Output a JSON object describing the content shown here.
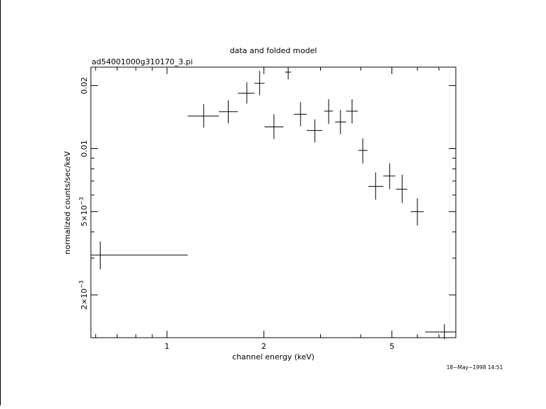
{
  "chart_data": {
    "type": "scatter",
    "title": "data and folded model",
    "subtitle": "ad54001000g310170_3.pi",
    "xlabel": "channel energy (keV)",
    "ylabel": "normalized counts/sec/keV",
    "xscale": "log",
    "yscale": "log",
    "xlim": [
      0.58,
      7.9
    ],
    "ylim": [
      0.00125,
      0.0245
    ],
    "x_ticklabels": [
      {
        "value": 1,
        "label": "1"
      },
      {
        "value": 2,
        "label": "2"
      },
      {
        "value": 5,
        "label": "5"
      }
    ],
    "y_ticklabels": [
      {
        "value": 0.002,
        "label": "2×10",
        "exp": "−3"
      },
      {
        "value": 0.005,
        "label": "5×10",
        "exp": "−3"
      },
      {
        "value": 0.01,
        "label": "0.01",
        "exp": ""
      },
      {
        "value": 0.02,
        "label": "0.02",
        "exp": ""
      }
    ],
    "points": [
      {
        "x": 0.62,
        "xlo": 0.58,
        "xhi": 1.16,
        "y": 0.0031,
        "ylo": 0.00265,
        "yhi": 0.0036
      },
      {
        "x": 1.3,
        "xlo": 1.16,
        "xhi": 1.45,
        "y": 0.0143,
        "ylo": 0.0126,
        "yhi": 0.0163
      },
      {
        "x": 1.55,
        "xlo": 1.45,
        "xhi": 1.66,
        "y": 0.015,
        "ylo": 0.0132,
        "yhi": 0.017
      },
      {
        "x": 1.77,
        "xlo": 1.66,
        "xhi": 1.87,
        "y": 0.0184,
        "ylo": 0.0164,
        "yhi": 0.0208
      },
      {
        "x": 1.94,
        "xlo": 1.87,
        "xhi": 2.01,
        "y": 0.0205,
        "ylo": 0.018,
        "yhi": 0.0235
      },
      {
        "x": 2.15,
        "xlo": 2.01,
        "xhi": 2.3,
        "y": 0.0127,
        "ylo": 0.0111,
        "yhi": 0.0146
      },
      {
        "x": 2.38,
        "xlo": 2.33,
        "xhi": 2.43,
        "y": 0.0232,
        "ylo": 0.0214,
        "yhi": 0.0245
      },
      {
        "x": 2.6,
        "xlo": 2.48,
        "xhi": 2.72,
        "y": 0.0146,
        "ylo": 0.0128,
        "yhi": 0.0167
      },
      {
        "x": 2.88,
        "xlo": 2.72,
        "xhi": 3.04,
        "y": 0.0122,
        "ylo": 0.0107,
        "yhi": 0.0138
      },
      {
        "x": 3.18,
        "xlo": 3.08,
        "xhi": 3.28,
        "y": 0.0151,
        "ylo": 0.0131,
        "yhi": 0.0172
      },
      {
        "x": 3.46,
        "xlo": 3.33,
        "xhi": 3.6,
        "y": 0.0134,
        "ylo": 0.0117,
        "yhi": 0.0153
      },
      {
        "x": 3.76,
        "xlo": 3.6,
        "xhi": 3.92,
        "y": 0.0151,
        "ylo": 0.0132,
        "yhi": 0.0172
      },
      {
        "x": 4.06,
        "xlo": 3.93,
        "xhi": 4.2,
        "y": 0.0098,
        "ylo": 0.0085,
        "yhi": 0.0112
      },
      {
        "x": 4.45,
        "xlo": 4.22,
        "xhi": 4.7,
        "y": 0.0066,
        "ylo": 0.0057,
        "yhi": 0.0077
      },
      {
        "x": 4.92,
        "xlo": 4.7,
        "xhi": 5.12,
        "y": 0.0074,
        "ylo": 0.0064,
        "yhi": 0.0085
      },
      {
        "x": 5.38,
        "xlo": 5.15,
        "xhi": 5.58,
        "y": 0.0064,
        "ylo": 0.0055,
        "yhi": 0.0075
      },
      {
        "x": 6.0,
        "xlo": 5.72,
        "xhi": 6.28,
        "y": 0.005,
        "ylo": 0.0043,
        "yhi": 0.0058
      },
      {
        "x": 7.28,
        "xlo": 6.35,
        "xhi": 7.9,
        "y": 0.00133,
        "ylo": 0.00123,
        "yhi": 0.00145
      }
    ],
    "grid": false,
    "legend": "none"
  },
  "timestamp": "18−May−1998 14:51"
}
